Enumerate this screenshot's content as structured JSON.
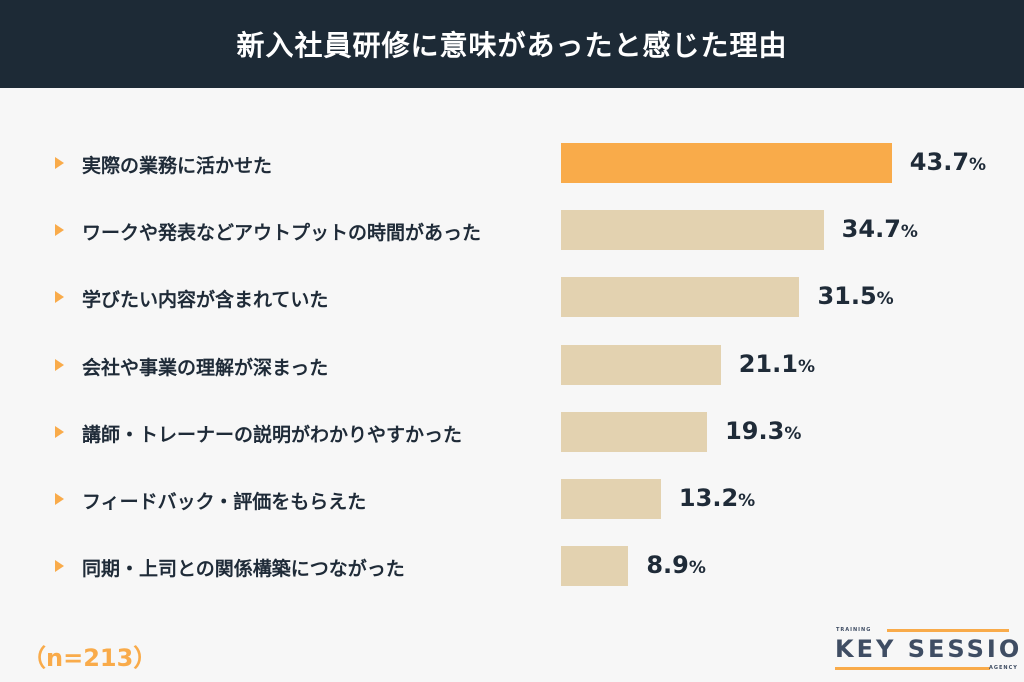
{
  "header": {
    "title": "新入社員研修に意味があったと感じた理由"
  },
  "colors": {
    "highlight": "#f9ab4a",
    "bar": "#e3d2b0",
    "header_bg": "#1d2a36"
  },
  "chart_data": {
    "type": "bar",
    "orientation": "horizontal",
    "title": "新入社員研修に意味があったと感じた理由",
    "categories": [
      "実際の業務に活かせた",
      "ワークや発表などアウトプットの時間があった",
      "学びたい内容が含まれていた",
      "会社や事業の理解が深まった",
      "講師・トレーナーの説明がわかりやすかった",
      "フィードバック・評価をもらえた",
      "同期・上司との関係構築につながった"
    ],
    "values": [
      43.7,
      34.7,
      31.5,
      21.1,
      19.3,
      13.2,
      8.9
    ],
    "value_labels": [
      "43.7",
      "34.7",
      "31.5",
      "21.1",
      "19.3",
      "13.2",
      "8.9"
    ],
    "unit": "%",
    "highlight_index": 0,
    "grid": false
  },
  "footer": {
    "sample": "（n=213）"
  },
  "logo": {
    "top": "TRAINING",
    "main": "KEY SESSION",
    "bottom": "AGENCY"
  }
}
